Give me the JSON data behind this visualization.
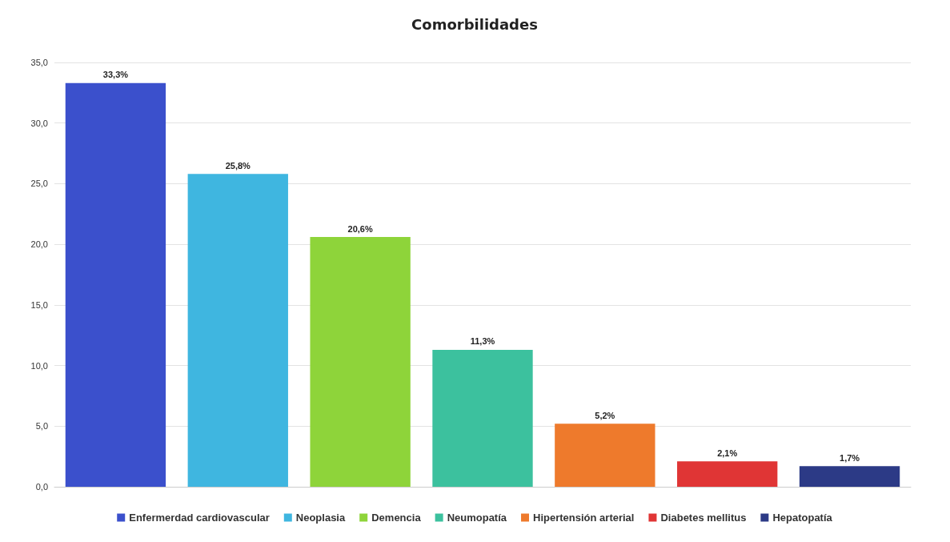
{
  "chart_data": {
    "type": "bar",
    "title": "Comorbilidades",
    "categories": [
      null,
      null,
      null,
      null,
      null,
      null,
      null
    ],
    "series": [
      {
        "name": "Enfermerdad cardiovascular",
        "color": "#3b50cc",
        "values": [
          33.3,
          null,
          null,
          null,
          null,
          null,
          null
        ],
        "value_labels": [
          "33,3%",
          null,
          null,
          null,
          null,
          null,
          null
        ]
      },
      {
        "name": "Neoplasia",
        "color": "#3fb6e0",
        "values": [
          null,
          25.8,
          null,
          null,
          null,
          null,
          null
        ],
        "value_labels": [
          null,
          "25,8%",
          null,
          null,
          null,
          null,
          null
        ]
      },
      {
        "name": "Demencia",
        "color": "#8ed43a",
        "values": [
          null,
          null,
          20.6,
          null,
          null,
          null,
          null
        ],
        "value_labels": [
          null,
          null,
          "20,6%",
          null,
          null,
          null,
          null
        ]
      },
      {
        "name": "Neumopatía",
        "color": "#3cc19e",
        "values": [
          null,
          null,
          null,
          11.3,
          null,
          null,
          null
        ],
        "value_labels": [
          null,
          null,
          null,
          "11,3%",
          null,
          null,
          null
        ]
      },
      {
        "name": "Hipertensión arterial",
        "color": "#ee7a2c",
        "values": [
          null,
          null,
          null,
          null,
          5.2,
          null,
          null
        ],
        "value_labels": [
          null,
          null,
          null,
          null,
          "5,2%",
          null,
          null
        ]
      },
      {
        "name": "Diabetes mellitus",
        "color": "#e03535",
        "values": [
          null,
          null,
          null,
          null,
          null,
          2.1,
          null
        ],
        "value_labels": [
          null,
          null,
          null,
          null,
          null,
          "2,1%",
          null
        ]
      },
      {
        "name": "Hepatopatía",
        "color": "#2c3a86",
        "values": [
          null,
          null,
          null,
          null,
          null,
          null,
          1.7
        ],
        "value_labels": [
          null,
          null,
          null,
          null,
          null,
          null,
          "1,7%"
        ]
      }
    ],
    "ylim": [
      0,
      35
    ],
    "yticks": [
      {
        "value": 0,
        "label": "0,0"
      },
      {
        "value": 5,
        "label": "5,0"
      },
      {
        "value": 10,
        "label": "10,0"
      },
      {
        "value": 15,
        "label": "15,0"
      },
      {
        "value": 20,
        "label": "20,0"
      },
      {
        "value": 25,
        "label": "25,0"
      },
      {
        "value": 30,
        "label": "30,0"
      },
      {
        "value": 35,
        "label": "35,0"
      }
    ],
    "grid": "y",
    "legend": "bottom",
    "tick_labels": "y"
  }
}
